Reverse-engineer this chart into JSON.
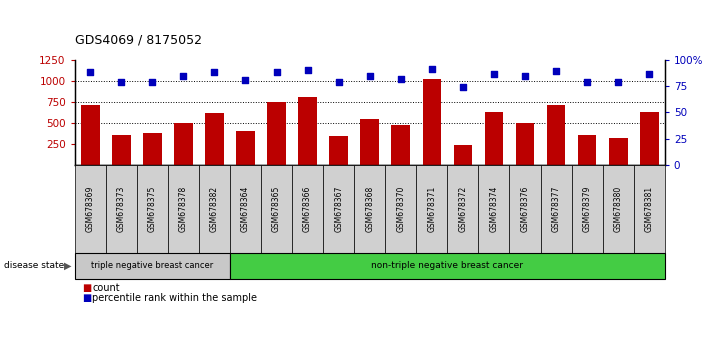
{
  "title": "GDS4069 / 8175052",
  "samples": [
    "GSM678369",
    "GSM678373",
    "GSM678375",
    "GSM678378",
    "GSM678382",
    "GSM678364",
    "GSM678365",
    "GSM678366",
    "GSM678367",
    "GSM678368",
    "GSM678370",
    "GSM678371",
    "GSM678372",
    "GSM678374",
    "GSM678376",
    "GSM678377",
    "GSM678379",
    "GSM678380",
    "GSM678381"
  ],
  "bar_values": [
    710,
    355,
    375,
    500,
    620,
    400,
    750,
    810,
    345,
    540,
    480,
    1020,
    230,
    630,
    500,
    710,
    360,
    320,
    635
  ],
  "dot_values": [
    1110,
    990,
    990,
    1060,
    1110,
    1010,
    1110,
    1130,
    990,
    1060,
    1030,
    1140,
    930,
    1080,
    1060,
    1115,
    990,
    990,
    1085
  ],
  "group1_count": 5,
  "group1_label": "triple negative breast cancer",
  "group2_label": "non-triple negative breast cancer",
  "ylim_left": [
    0,
    1250
  ],
  "ylim_right": [
    0,
    100
  ],
  "yticks_left": [
    250,
    500,
    750,
    1000,
    1250
  ],
  "yticks_right": [
    0,
    25,
    50,
    75,
    100
  ],
  "bar_color": "#bb0000",
  "dot_color": "#0000bb",
  "group1_bg": "#c8c8c8",
  "group2_bg": "#44cc44",
  "tick_bg": "#d0d0d0",
  "legend_count_label": "count",
  "legend_pct_label": "percentile rank within the sample",
  "disease_state_label": "disease state"
}
